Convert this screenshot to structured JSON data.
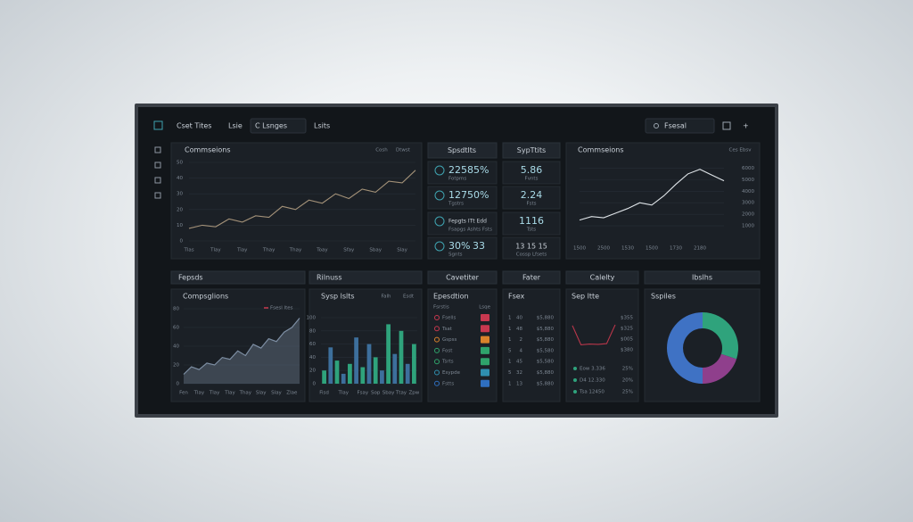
{
  "toolbar": {
    "brand": "Cset Tites",
    "tabs": [
      "Lsie",
      "C Lsnges",
      "Lsits"
    ],
    "search": "Fsesal"
  },
  "stats": {
    "title": "Spsdtlts",
    "items": [
      {
        "value": "22585%",
        "label": "Fotpms"
      },
      {
        "value": "12750%",
        "label": "Tgstrs"
      },
      {
        "value": "Fepgts ITt Edd",
        "label": "Fsapgs Ashts Fsts"
      },
      {
        "value": "30%",
        "extra": "33",
        "label": "Sgnts"
      }
    ]
  },
  "stats2": {
    "title": "SypTtits",
    "items": [
      {
        "value": "5.86",
        "label": "Fvnts"
      },
      {
        "value": "2.24",
        "label": "Fsts"
      },
      {
        "value": "1116",
        "label": "Tsts"
      },
      {
        "value": "13 15 15",
        "label": "Cossp Lfsets"
      }
    ]
  },
  "sections": [
    "Fepsds",
    "Rilnuss",
    "Cavetiter",
    "Fater",
    "Calelty",
    "Ibslhs"
  ],
  "list": {
    "title": "Epesdtion",
    "header": [
      "Fsrstis",
      "Lsqe"
    ],
    "rows": [
      {
        "label": "Fsells",
        "color": "#c8384f"
      },
      {
        "label": "Tsat",
        "color": "#c8384f"
      },
      {
        "label": "Gspss",
        "color": "#d9822b"
      },
      {
        "label": "Fost",
        "color": "#2fa36b"
      },
      {
        "label": "Tsrts",
        "color": "#2fa36b"
      },
      {
        "label": "Esypde",
        "color": "#2f8fb0"
      },
      {
        "label": "Fstts",
        "color": "#2f6fc0"
      }
    ]
  },
  "table": {
    "title": "Fsex",
    "rows": [
      [
        "1",
        "40",
        "$5,880"
      ],
      [
        "1",
        "48",
        "$5,880"
      ],
      [
        "1",
        "2",
        "$5,880"
      ],
      [
        "5",
        "4",
        "$5,580"
      ],
      [
        "1",
        "45",
        "$5,580"
      ],
      [
        "5",
        "32",
        "$5,880"
      ],
      [
        "1",
        "13",
        "$5,880"
      ]
    ]
  },
  "chart_data": [
    {
      "type": "line",
      "title": "Commseions",
      "annotations": [
        "Cosh",
        "Dtwst"
      ],
      "categories": [
        "Tlas",
        null,
        "Tlay",
        null,
        "Tiay",
        null,
        "Thay",
        null,
        "Thay",
        null,
        "Toay",
        null,
        "Sfay",
        null,
        "Sbay",
        null,
        "Slay",
        null
      ],
      "values": [
        8,
        10,
        9,
        14,
        12,
        16,
        15,
        22,
        20,
        26,
        24,
        30,
        27,
        33,
        31,
        38,
        37,
        45
      ],
      "color": "#a39178",
      "ylim": [
        0,
        50
      ],
      "yticks": [
        0,
        10,
        20,
        30,
        40,
        50
      ],
      "grid": true,
      "axis_side": "left"
    },
    {
      "type": "line",
      "title": "Commseions",
      "annotations": [
        "Ces Ebsv"
      ],
      "categories": [
        "1500",
        null,
        "2500",
        null,
        "1530",
        null,
        "1500",
        null,
        "1730",
        null,
        "2180",
        null,
        null
      ],
      "values": [
        1500,
        1800,
        1700,
        2100,
        2500,
        3000,
        2800,
        3600,
        4600,
        5500,
        5900,
        5400,
        4900
      ],
      "color": "#dfe4e8",
      "ylim": [
        0,
        6500
      ],
      "yticks": [
        1000,
        2000,
        3000,
        4000,
        5000,
        6000
      ],
      "grid": true,
      "axis_side": "right"
    },
    {
      "type": "area",
      "title": "Compsglions",
      "categories": [
        "Fen",
        null,
        "Tlay",
        null,
        "Tlay",
        null,
        "Tlay",
        null,
        "Thay",
        null,
        "Slay",
        null,
        "Slay",
        null,
        "Zlae",
        null
      ],
      "series": [
        {
          "name": "Fsesl ltes",
          "color": "#7d8ea3",
          "values": [
            10,
            18,
            15,
            22,
            20,
            28,
            26,
            35,
            30,
            42,
            38,
            48,
            45,
            55,
            60,
            70
          ]
        }
      ],
      "ylim": [
        0,
        80
      ],
      "yticks": [
        0,
        20,
        40,
        60,
        80
      ],
      "grid": true,
      "axis_side": "left"
    },
    {
      "type": "bar",
      "title": "Sysp lslts",
      "annotations": [
        "Falh",
        "Esdt"
      ],
      "categories": [
        "Fisd",
        null,
        null,
        "Tlay",
        null,
        null,
        "Fsay",
        null,
        "Sop",
        null,
        "Sbay",
        null,
        "Ttay",
        null,
        "Zpw"
      ],
      "values": [
        20,
        55,
        35,
        15,
        30,
        70,
        25,
        60,
        40,
        20,
        90,
        45,
        80,
        30,
        60
      ],
      "colors": [
        "#2fa37c",
        "#3d6f9c"
      ],
      "ylim": [
        0,
        100
      ],
      "yticks": [
        0,
        20,
        40,
        60,
        80,
        100
      ],
      "grid": true,
      "axis_side": "left"
    },
    {
      "type": "line",
      "title": "Sep ltte",
      "annotations": [
        "$355",
        "$325",
        "$005",
        "$380",
        "Eow 3.336",
        "25%",
        "D4 12.330",
        "20%",
        "Tsa 12450",
        "25%"
      ],
      "values": [
        70,
        20,
        22,
        21,
        23,
        72
      ],
      "color": "#b8364a",
      "ylim": [
        0,
        100
      ]
    },
    {
      "type": "pie",
      "title": "Sspiles",
      "values": [
        30,
        20,
        50
      ],
      "colors": [
        "#2fa37c",
        "#8f3f8c",
        "#3f72c4"
      ],
      "donut": true
    }
  ]
}
